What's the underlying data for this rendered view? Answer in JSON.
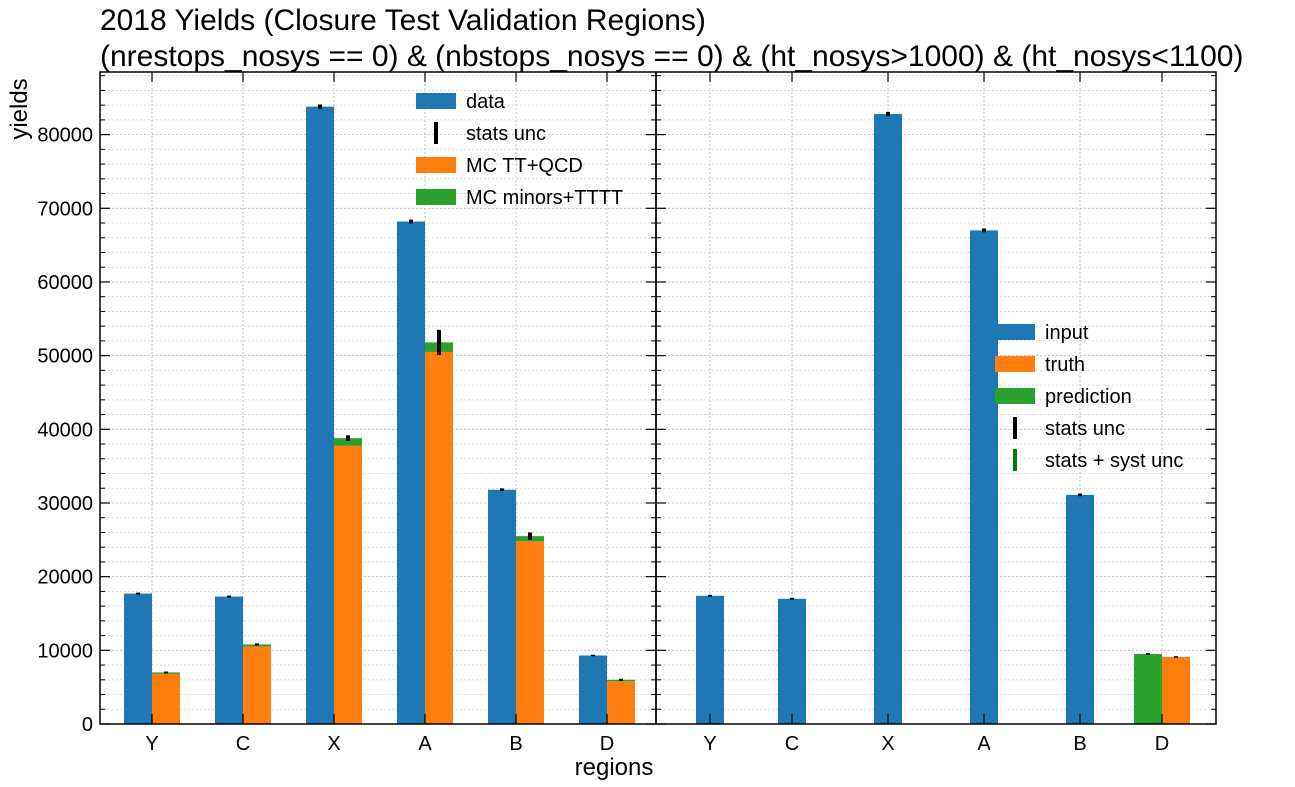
{
  "chart_data": {
    "type": "bar",
    "title": "2018 Yields (Closure Test Validation Regions)",
    "subtitle": "(nrestops_nosys == 0) & (nbstops_nosys == 0) & (ht_nosys>1000) & (ht_nosys<1100)",
    "xlabel": "regions",
    "ylabel": "yields",
    "ylim": [
      0,
      88500
    ],
    "yticks": [
      0,
      10000,
      20000,
      30000,
      40000,
      50000,
      60000,
      70000,
      80000
    ],
    "ytick_labels": [
      "0",
      "10000",
      "20000",
      "30000",
      "40000",
      "50000",
      "60000",
      "70000",
      "80000"
    ],
    "grid": true,
    "colors": {
      "blue": "#1f77b4",
      "orange": "#ff7f0e",
      "green": "#2ca02c",
      "black": "#000000",
      "darkgreen": "#008000"
    },
    "panels": [
      {
        "categories": [
          "Y",
          "C",
          "X",
          "A",
          "B",
          "D"
        ],
        "legend": {
          "position": "top-center",
          "entries": [
            {
              "label": "data",
              "kind": "patch",
              "color": "#1f77b4"
            },
            {
              "label": "stats unc",
              "kind": "errorbar",
              "color": "#000000"
            },
            {
              "label": "MC TT+QCD",
              "kind": "patch",
              "color": "#ff7f0e"
            },
            {
              "label": "MC minors+TTTT",
              "kind": "patch",
              "color": "#2ca02c"
            }
          ]
        },
        "series": [
          {
            "name": "data",
            "values": [
              17700,
              17300,
              83800,
              68200,
              31800,
              9300
            ],
            "errors": [
              130,
              130,
              290,
              260,
              180,
              100
            ]
          },
          {
            "name": "MC TT+QCD",
            "values": [
              6800,
              10500,
              37800,
              50500,
              24800,
              5800
            ]
          },
          {
            "name": "MC minors+TTTT",
            "values": [
              200,
              300,
              1000,
              1300,
              700,
              200
            ]
          }
        ],
        "stack_errors": [
          120,
          140,
          380,
          1700,
          500,
          140
        ]
      },
      {
        "categories": [
          "Y",
          "C",
          "X",
          "A",
          "B",
          "D"
        ],
        "legend": {
          "position": "center-right",
          "entries": [
            {
              "label": "input",
              "kind": "patch",
              "color": "#1f77b4"
            },
            {
              "label": "truth",
              "kind": "patch",
              "color": "#ff7f0e"
            },
            {
              "label": "prediction",
              "kind": "patch",
              "color": "#2ca02c"
            },
            {
              "label": "stats unc",
              "kind": "errorbar",
              "color": "#000000"
            },
            {
              "label": "stats + syst unc",
              "kind": "errorbar",
              "color": "#008000"
            }
          ]
        },
        "series": [
          {
            "name": "input",
            "values": [
              17400,
              17000,
              82800,
              67000,
              31100,
              null
            ],
            "errors": [
              130,
              130,
              290,
              260,
              180,
              null
            ]
          },
          {
            "name": "prediction",
            "values": [
              null,
              null,
              null,
              null,
              null,
              9500
            ],
            "errors": [
              null,
              null,
              null,
              null,
              null,
              120
            ]
          },
          {
            "name": "truth",
            "values": [
              null,
              null,
              null,
              null,
              null,
              9100
            ],
            "errors": [
              null,
              null,
              null,
              null,
              null,
              100
            ]
          }
        ]
      }
    ]
  }
}
